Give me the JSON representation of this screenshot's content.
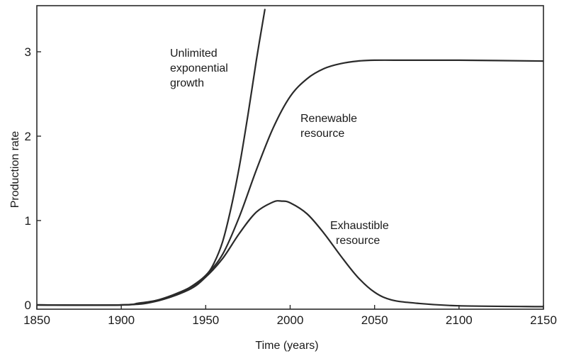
{
  "chart_data": {
    "type": "line",
    "title": "",
    "xlabel": "Time (years)",
    "ylabel": "Production rate",
    "xlim": [
      1850,
      2150
    ],
    "ylim": [
      0,
      3.4
    ],
    "grid": false,
    "x_ticks": [
      1850,
      1900,
      1950,
      2000,
      2050,
      2100,
      2150
    ],
    "y_ticks": [
      0,
      1,
      2,
      3
    ],
    "series": [
      {
        "name": "Unlimited exponential growth",
        "label_lines": [
          "Unlimited",
          "exponential",
          "growth"
        ],
        "x": [
          1850,
          1900,
          1910,
          1920,
          1930,
          1940,
          1950,
          1955,
          1960,
          1965,
          1970,
          1975,
          1980,
          1985
        ],
        "y": [
          0,
          0.0,
          0.02,
          0.05,
          0.1,
          0.2,
          0.35,
          0.5,
          0.75,
          1.15,
          1.65,
          2.25,
          2.9,
          3.5
        ]
      },
      {
        "name": "Renewable resource",
        "label_lines": [
          "Renewable",
          "resource"
        ],
        "x": [
          1850,
          1900,
          1920,
          1940,
          1950,
          1960,
          1970,
          1980,
          1990,
          2000,
          2010,
          2020,
          2030,
          2040,
          2050,
          2070,
          2100,
          2150
        ],
        "y": [
          0,
          0.0,
          0.05,
          0.2,
          0.35,
          0.6,
          1.05,
          1.6,
          2.1,
          2.47,
          2.68,
          2.8,
          2.86,
          2.89,
          2.9,
          2.9,
          2.9,
          2.89
        ]
      },
      {
        "name": "Exhaustible resource",
        "label_lines": [
          "Exhaustible",
          "resource"
        ],
        "x": [
          1850,
          1900,
          1920,
          1940,
          1950,
          1960,
          1970,
          1980,
          1990,
          1995,
          2000,
          2010,
          2020,
          2030,
          2040,
          2050,
          2060,
          2075,
          2100,
          2150
        ],
        "y": [
          0,
          0.0,
          0.04,
          0.18,
          0.33,
          0.55,
          0.85,
          1.1,
          1.22,
          1.23,
          1.21,
          1.08,
          0.85,
          0.58,
          0.33,
          0.15,
          0.06,
          0.02,
          -0.01,
          -0.02
        ]
      }
    ]
  }
}
